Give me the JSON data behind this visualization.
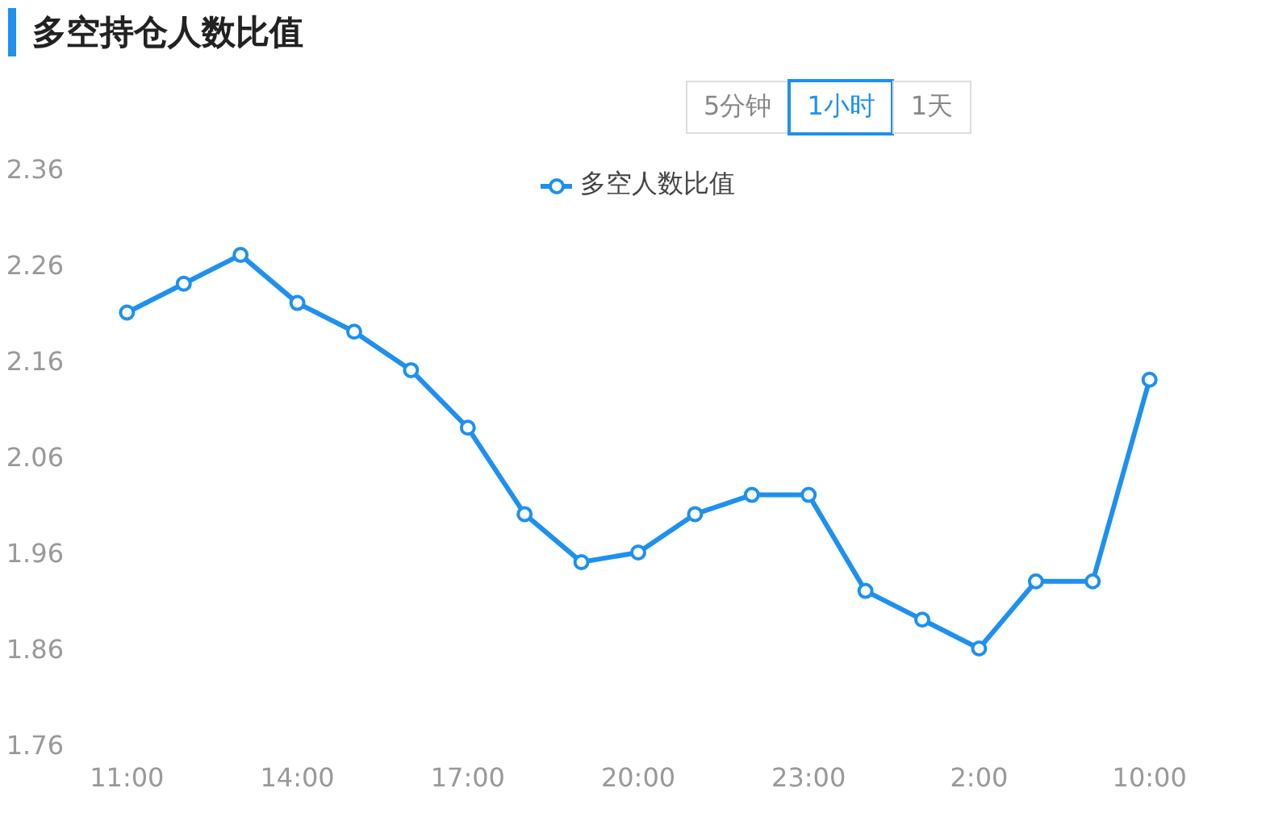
{
  "chart_data": {
    "type": "line",
    "title": "多空持仓人数比值",
    "annotations": [
      "5分钟",
      "1小时",
      "1天"
    ],
    "categories": [
      "11:00",
      null,
      null,
      "14:00",
      null,
      null,
      "17:00",
      null,
      null,
      "20:00",
      null,
      null,
      "23:00",
      null,
      null,
      "2:00",
      null,
      null,
      "10:00"
    ],
    "series": [
      {
        "name": "多空人数比值",
        "color": "#1e90f0",
        "values": [
          2.21,
          2.24,
          2.27,
          2.22,
          2.19,
          2.15,
          2.09,
          2.0,
          1.95,
          1.96,
          2.0,
          2.02,
          2.02,
          1.92,
          1.89,
          1.86,
          1.93,
          1.93,
          2.14
        ]
      }
    ],
    "ylim": [
      1.76,
      2.36
    ],
    "yticks": [
      1.76,
      1.86,
      1.96,
      2.06,
      2.16,
      2.26,
      2.36
    ],
    "grid": false,
    "legend": "top",
    "marker": "circle",
    "line_style": "solid"
  }
}
